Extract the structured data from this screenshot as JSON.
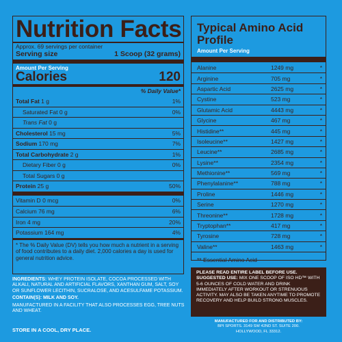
{
  "nutrition": {
    "title": "Nutrition Facts",
    "servings_per_container": "Approx. 69 servings per container",
    "serving_size_label": "Serving size",
    "serving_size_value": "1 Scoop (32 grams)",
    "amount_per_serving": "Amount Per Serving",
    "calories_label": "Calories",
    "calories_value": "120",
    "dv_header": "% Daily Value*",
    "rows": [
      {
        "label": "Total Fat",
        "amount": "1 g",
        "dv": "1%",
        "bold": true,
        "indent": 0
      },
      {
        "label": "Saturated Fat",
        "amount": "0 g",
        "dv": "0%",
        "bold": false,
        "indent": 1
      },
      {
        "label": "Trans Fat",
        "amount": "0 g",
        "dv": "",
        "bold": false,
        "indent": 1,
        "italic": true
      },
      {
        "label": "Cholesterol",
        "amount": "15 mg",
        "dv": "5%",
        "bold": true,
        "indent": 0
      },
      {
        "label": "Sodium",
        "amount": "170 mg",
        "dv": "7%",
        "bold": true,
        "indent": 0
      },
      {
        "label": "Total Carbohydrate",
        "amount": "2 g",
        "dv": "1%",
        "bold": true,
        "indent": 0
      },
      {
        "label": "Dietary Fiber",
        "amount": "0 g",
        "dv": "0%",
        "bold": false,
        "indent": 1
      },
      {
        "label": "Total Sugars",
        "amount": "0 g",
        "dv": "",
        "bold": false,
        "indent": 1
      },
      {
        "label": "Protein",
        "amount": "25 g",
        "dv": "50%",
        "bold": true,
        "indent": 0
      }
    ],
    "micros": [
      {
        "label": "Vitamin D",
        "amount": "0 mcg",
        "dv": "0%"
      },
      {
        "label": "Calcium",
        "amount": "76 mg",
        "dv": "6%"
      },
      {
        "label": "Iron",
        "amount": "4 mg",
        "dv": "20%"
      },
      {
        "label": "Potassium",
        "amount": "164 mg",
        "dv": "4%"
      }
    ],
    "footnote": "* The % Daily Value (DV) tells you how much a nutrient in a serving of food contributes to a daily diet. 2,000 calories a day is used for general nutrition advice."
  },
  "amino": {
    "title": "Typical Amino Acid Profile",
    "subtitle": "Amount Per Serving",
    "rows": [
      {
        "name": "Alanine",
        "value": "1249 mg",
        "mark": "*"
      },
      {
        "name": "Arginine",
        "value": "705 mg",
        "mark": "*"
      },
      {
        "name": "Aspartic Acid",
        "value": "2625 mg",
        "mark": "*"
      },
      {
        "name": "Cystine",
        "value": "523 mg",
        "mark": "*"
      },
      {
        "name": "Glutamic Acid",
        "value": "4443 mg",
        "mark": "*"
      },
      {
        "name": "Glycine",
        "value": "467 mg",
        "mark": "*"
      },
      {
        "name": "Histidine**",
        "value": "445 mg",
        "mark": "*"
      },
      {
        "name": "Isoleucine**",
        "value": "1427 mg",
        "mark": "*"
      },
      {
        "name": "Leucine**",
        "value": "2685 mg",
        "mark": "*"
      },
      {
        "name": "Lysine**",
        "value": "2354 mg",
        "mark": "*"
      },
      {
        "name": "Methionine**",
        "value": "569 mg",
        "mark": "*"
      },
      {
        "name": "Phenylalanine**",
        "value": "788 mg",
        "mark": "*"
      },
      {
        "name": "Proline",
        "value": "1446 mg",
        "mark": "*"
      },
      {
        "name": "Serine",
        "value": "1270 mg",
        "mark": "*"
      },
      {
        "name": "Threonine**",
        "value": "1728 mg",
        "mark": "*"
      },
      {
        "name": "Tryptophan**",
        "value": "417 mg",
        "mark": "*"
      },
      {
        "name": "Tyrosine",
        "value": "728 mg",
        "mark": "*"
      },
      {
        "name": "Valine**",
        "value": "1463 mg",
        "mark": "*"
      }
    ],
    "note": "** Essential Amino Acid"
  },
  "directions": {
    "heading": "PLEASE READ ENTIRE LABEL BEFORE USE.",
    "suggested_label": "SUGGESTED USE:",
    "text": "MIX ONE SCOOP OF ISO HD™ WITH 5-6 OUNCES OF COLD WATER AND DRINK IMMEDIATELY AFTER WORKOUT OR STRENUOUS ACTIVITY. MAY ALSO BE TAKEN ANYTIME TO PROMOTE RECOVERY AND HELP BUILD STRONG MUSCLES."
  },
  "ingredients": {
    "label": "INGREDIENTS:",
    "text": "WHEY PROTEIN ISOLATE, COCOA PROCESSED WITH ALKALI, NATURAL AND ARTIFICIAL FLAVORS, XANTHAN GUM, SALT, SOY OR SUNFLOWER LECITHIN, SUCRALOSE, AND ACESULFAME POTASSIUM.",
    "contains": "CONTAIN(S): MILK AND SOY.",
    "facility": "MANUFACTURED IN A FACILITY THAT ALSO PROCESSES EGG, TREE NUTS AND WHEAT.",
    "storage": "STORE IN A COOL, DRY PLACE."
  },
  "manufacturer": {
    "heading": "MANUFACTURED FOR AND DISTRIBUTED BY:",
    "line1": "BPI SPORTS. 3149 SW 42ND ST. SUITE 200.",
    "line2": "HOLLYWOOD, FL 33312."
  },
  "colors": {
    "background": "#1d9ae0",
    "dark": "#3b1f18"
  }
}
